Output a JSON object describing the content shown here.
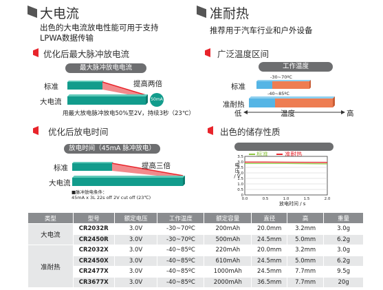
{
  "left": {
    "title": "大电流",
    "desc_line1": "出色的大电流放电性能可用于支持",
    "desc_line2": "LPWA数据传输",
    "pulse": {
      "subtitle": "优化后最大脉冲放电流",
      "pill": "最大脉冲放电电流",
      "label_standard": "标准",
      "label_high": "大电流",
      "annotation": "提高两倍",
      "badge": "50mA",
      "note": "用最大放电脉冲放电50%至2V，持续3秒（23℃）"
    },
    "time": {
      "subtitle": "优化后放电时间",
      "pill": "放电时间（45mA 脉冲放电）",
      "label_standard": "标准",
      "label_high": "大电流",
      "annotation": "提高三倍",
      "cond_line1": "脉冲放电条件：",
      "cond_line2": "45mA x 3L 22s off 2V cut off (23℃)"
    }
  },
  "right": {
    "title": "准耐热",
    "desc": "推荐用于汽车行业和户外设备",
    "temp": {
      "subtitle": "广泛温度区间",
      "pill": "工作温度",
      "label_standard": "标准",
      "label_heat": "准耐热",
      "range_standard": "-30~70ºC",
      "range_heat": "-40~85ºC",
      "axis_low": "低",
      "axis_mid": "温度",
      "axis_high": "高"
    },
    "storage": {
      "subtitle": "出色的储存性质",
      "legend_standard": "标准",
      "legend_heat": "准耐热",
      "ylabel": "电压 / V",
      "xlabel": "放电时间 / s"
    }
  },
  "chart_data": {
    "type": "line",
    "xlabel": "放电时间 / s",
    "ylabel": "电压 / V",
    "xlim": [
      0,
      2.0
    ],
    "ylim": [
      0,
      3.5
    ],
    "xticks": [
      "0.0",
      "0.5",
      "1.0",
      "1.5",
      "2.0"
    ],
    "yticks": [
      "0",
      "0.5",
      "1.0",
      "1.5",
      "2.0",
      "2.5",
      "3.0",
      "3.5"
    ],
    "series": [
      {
        "name": "标准",
        "color": "#8dc63f",
        "x": [
          0,
          0.5,
          1.0,
          1.5,
          2.0
        ],
        "y": [
          2.85,
          2.85,
          2.85,
          2.84,
          2.82
        ]
      },
      {
        "name": "准耐热",
        "color": "#e8242b",
        "x": [
          0,
          0.5,
          1.0,
          1.5,
          2.0
        ],
        "y": [
          2.98,
          2.98,
          2.97,
          2.96,
          2.95
        ]
      }
    ]
  },
  "table": {
    "headers": [
      "类型",
      "型号",
      "额定电压",
      "工作温度",
      "额定容量",
      "直径",
      "高",
      "重量"
    ],
    "groups": [
      {
        "name": "大电流",
        "rows": [
          [
            "CR2032R",
            "3.0V",
            "-30~70ºC",
            "200mAh",
            "20.0mm",
            "3.2mm",
            "3.0g"
          ],
          [
            "CR2450R",
            "3.0V",
            "-30~70ºC",
            "500mAh",
            "24.5mm",
            "5.0mm",
            "6.2g"
          ]
        ]
      },
      {
        "name": "准耐热",
        "rows": [
          [
            "CR2032X",
            "3.0V",
            "-40~85ºC",
            "220mAh",
            "20.0mm",
            "3.2mm",
            "3.0g"
          ],
          [
            "CR2450X",
            "3.0V",
            "-40~85ºC",
            "610mAh",
            "24.5mm",
            "5.0mm",
            "6.2g"
          ],
          [
            "CR2477X",
            "3.0V",
            "-40~85ºC",
            "1000mAh",
            "24.5mm",
            "7.7mm",
            "9.5g"
          ],
          [
            "CR3677X",
            "3.0V",
            "-40~85ºC",
            "2000mAh",
            "36.5mm",
            "7.7mm",
            "20g"
          ]
        ]
      }
    ]
  },
  "colors": {
    "teal": "#129c8c",
    "orange": "#ee7d52",
    "blue": "#55b5e5",
    "red": "#e8242b",
    "green": "#8dc63f",
    "header_gray": "#8a8c8f"
  }
}
